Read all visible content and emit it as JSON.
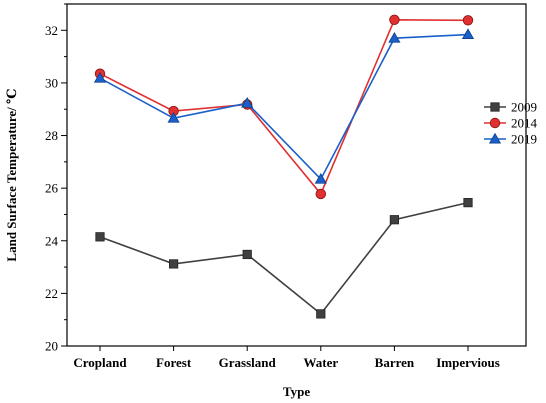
{
  "chart_data": {
    "type": "line",
    "xlabel": "Type",
    "ylabel": "Land Surface Temperature/ ℃",
    "categories": [
      "Cropland",
      "Forest",
      "Grassland",
      "Water",
      "Barren",
      "Impervious"
    ],
    "ylim": [
      20,
      33
    ],
    "yticks": [
      20,
      22,
      24,
      26,
      28,
      30,
      32
    ],
    "grid": false,
    "legend_position": "right",
    "series": [
      {
        "name": "2009",
        "color": "#404040",
        "marker": "square",
        "values": [
          24.15,
          23.12,
          23.48,
          21.22,
          24.8,
          25.45
        ]
      },
      {
        "name": "2014",
        "color": "#e03030",
        "marker": "circle",
        "values": [
          30.35,
          28.93,
          29.18,
          25.78,
          32.4,
          32.38
        ]
      },
      {
        "name": "2019",
        "color": "#1a60c8",
        "marker": "triangle",
        "values": [
          30.18,
          28.66,
          29.23,
          26.34,
          31.7,
          31.84
        ]
      }
    ]
  }
}
